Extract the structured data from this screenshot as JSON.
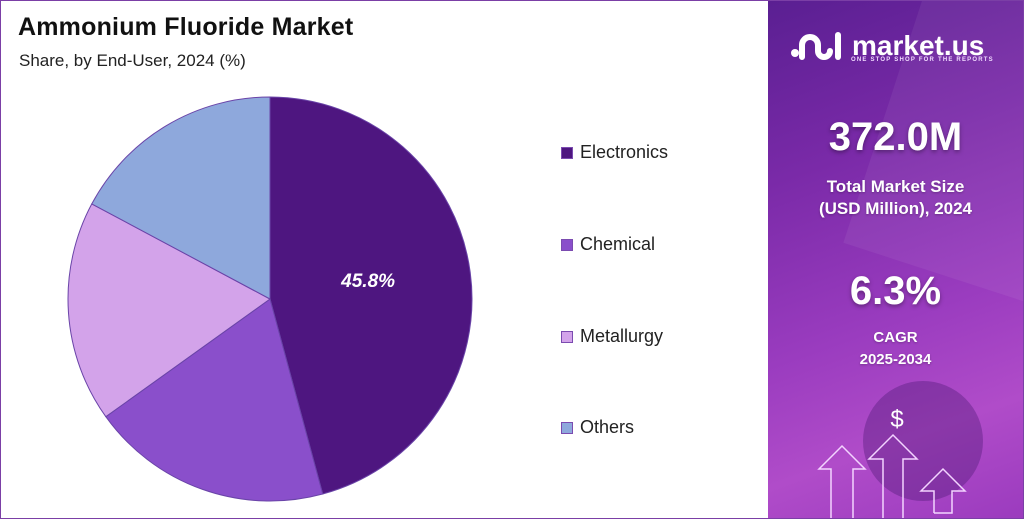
{
  "header": {
    "title": "Ammonium Fluoride Market",
    "subtitle": "Share, by End-User, 2024 (%)"
  },
  "chart_data": {
    "type": "pie",
    "title": "Ammonium Fluoride Market",
    "subtitle": "Share, by End-User, 2024 (%)",
    "categories": [
      "Electronics",
      "Chemical",
      "Metallurgy",
      "Others"
    ],
    "values": [
      45.8,
      19.3,
      17.7,
      17.2
    ],
    "colors": [
      "#4e1680",
      "#8a4fcb",
      "#d3a3ea",
      "#8ea8dc"
    ],
    "data_labels": [
      "45.8%",
      "",
      "",
      ""
    ],
    "start_angle": "12 o'clock, clockwise",
    "legend_position": "right"
  },
  "legend": {
    "items": [
      {
        "label": "Electronics",
        "color": "#4e1680"
      },
      {
        "label": "Chemical",
        "color": "#8a4fcb"
      },
      {
        "label": "Metallurgy",
        "color": "#d3a3ea"
      },
      {
        "label": "Others",
        "color": "#8ea8dc"
      }
    ]
  },
  "slice_label": "45.8%",
  "panel": {
    "brand": "market.us",
    "tagline": "ONE STOP SHOP FOR THE REPORTS",
    "market_size_value": "372.0M",
    "market_size_label_1": "Total Market Size",
    "market_size_label_2": "(USD Million), 2024",
    "cagr_value": "6.3%",
    "cagr_label_1": "CAGR",
    "cagr_label_2": "2025-2034",
    "dollar_symbol": "$"
  },
  "colors": {
    "accent": "#7b3fa6",
    "panel_dark": "#5a1f92",
    "panel_light": "#b04cc9"
  }
}
